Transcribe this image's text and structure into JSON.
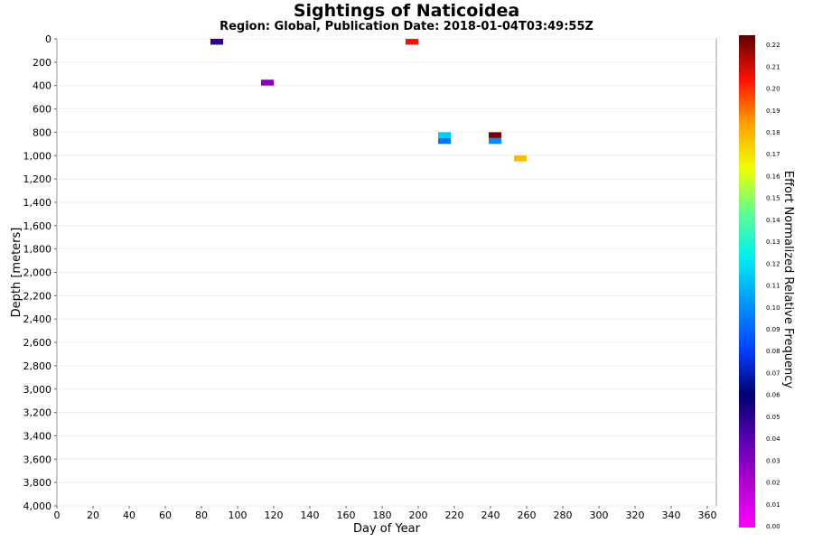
{
  "chart_data": {
    "type": "heatmap",
    "title": "Sightings of Naticoidea",
    "subtitle": "Region: Global, Publication Date: 2018-01-04T03:49:55Z",
    "xlabel": "Day of Year",
    "ylabel": "Depth [meters]",
    "colorbar_label": "Effort Normalized Relative Frequency",
    "xlim": [
      0,
      365
    ],
    "ylim": [
      4000,
      0
    ],
    "x_ticks": [
      "0",
      "20",
      "40",
      "60",
      "80",
      "100",
      "120",
      "140",
      "160",
      "180",
      "200",
      "220",
      "240",
      "260",
      "280",
      "300",
      "320",
      "340",
      "360"
    ],
    "y_ticks": [
      "0",
      "200",
      "400",
      "600",
      "800",
      "1,000",
      "1,200",
      "1,400",
      "1,600",
      "1,800",
      "2,000",
      "2,200",
      "2,400",
      "2,600",
      "2,800",
      "3,000",
      "3,200",
      "3,400",
      "3,600",
      "3,800",
      "4,000"
    ],
    "colorbar_ticks": [
      "0.00",
      "0.01",
      "0.02",
      "0.03",
      "0.04",
      "0.05",
      "0.06",
      "0.07",
      "0.08",
      "0.09",
      "0.10",
      "0.11",
      "0.12",
      "0.13",
      "0.14",
      "0.15",
      "0.16",
      "0.17",
      "0.18",
      "0.19",
      "0.20",
      "0.21",
      "0.22"
    ],
    "colorbar_range": [
      0,
      0.225
    ],
    "cell_size": {
      "day": 7,
      "depth": 50
    },
    "cells": [
      {
        "day": 85,
        "depth": 0,
        "value": 0.05
      },
      {
        "day": 193,
        "depth": 0,
        "value": 0.205
      },
      {
        "day": 113,
        "depth": 350,
        "value": 0.03
      },
      {
        "day": 211,
        "depth": 800,
        "value": 0.115
      },
      {
        "day": 211,
        "depth": 850,
        "value": 0.095
      },
      {
        "day": 239,
        "depth": 800,
        "value": 0.222
      },
      {
        "day": 239,
        "depth": 850,
        "value": 0.1
      },
      {
        "day": 253,
        "depth": 1000,
        "value": 0.18
      }
    ]
  }
}
